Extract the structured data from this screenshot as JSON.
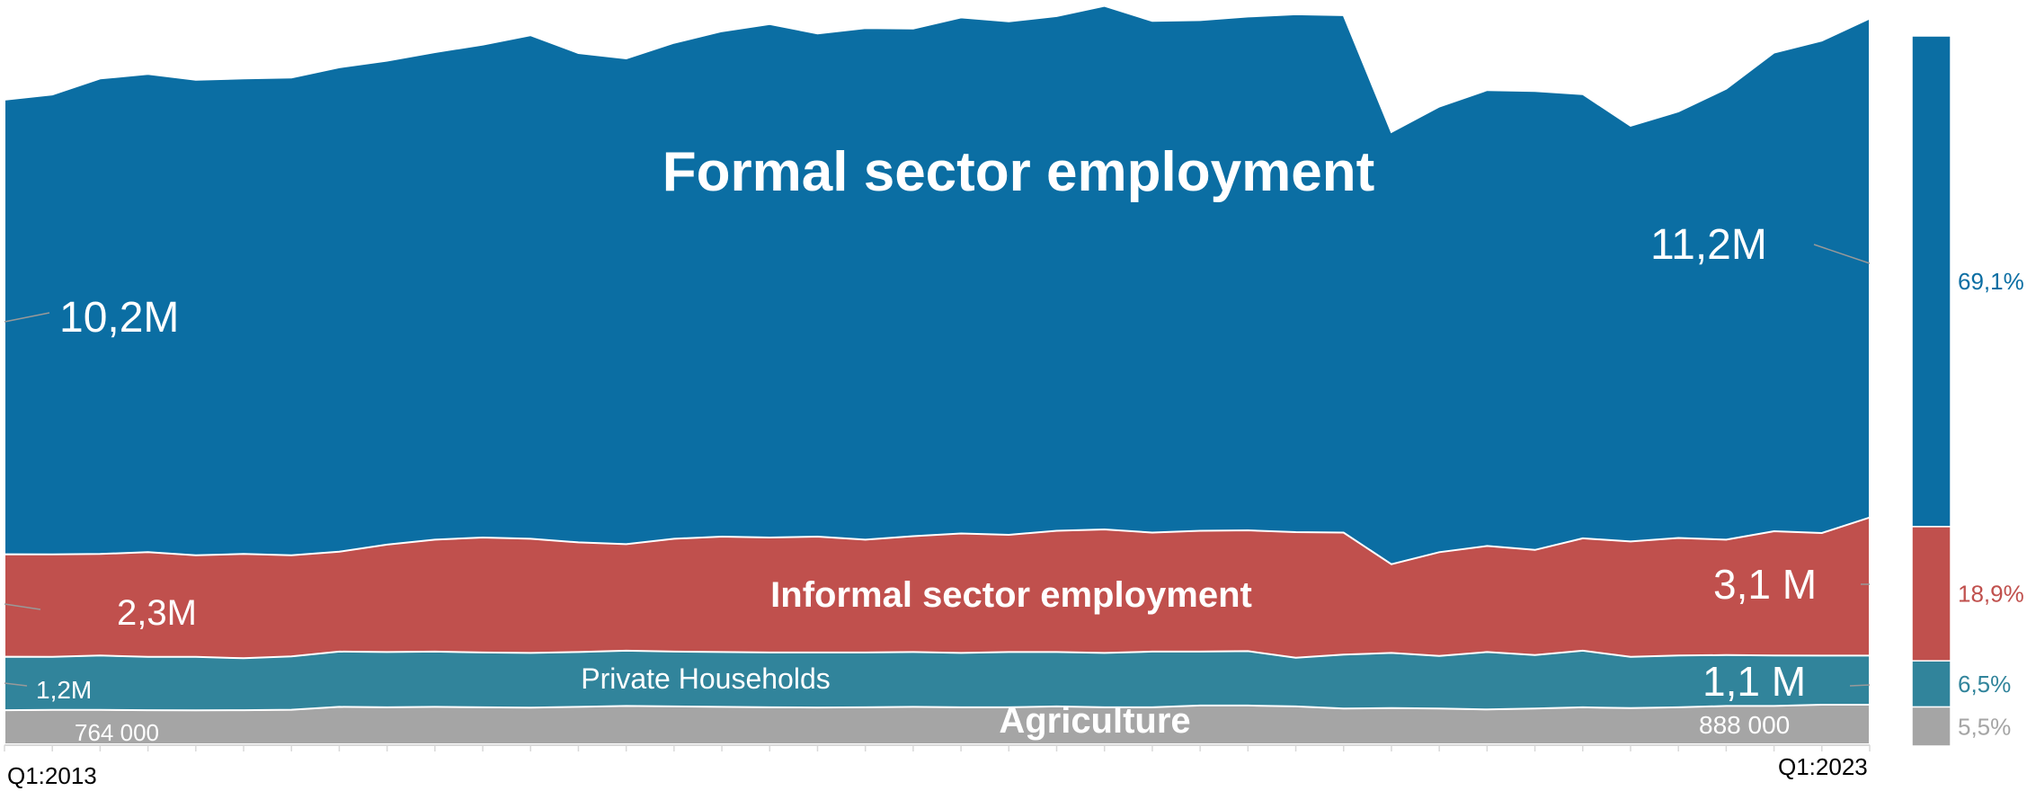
{
  "chart_data": {
    "type": "area",
    "stacked": true,
    "x_ticks": [
      "Q1:2013",
      "Q1:2023"
    ],
    "series": [
      {
        "name": "Agriculture",
        "color": "#a5a5a5"
      },
      {
        "name": "Private Households",
        "color": "#31849b"
      },
      {
        "name": "Informal sector employment",
        "color": "#c0504d"
      },
      {
        "name": "Formal sector employment",
        "color": "#0b6ea3"
      }
    ],
    "stack_totals": [
      [
        0.764,
        0.77,
        0.77,
        0.765,
        0.76,
        0.765,
        0.775,
        0.84,
        0.83,
        0.84,
        0.83,
        0.82,
        0.84,
        0.86,
        0.85,
        0.84,
        0.83,
        0.825,
        0.83,
        0.84,
        0.83,
        0.83,
        0.85,
        0.83,
        0.83,
        0.87,
        0.87,
        0.85,
        0.8,
        0.81,
        0.8,
        0.78,
        0.8,
        0.83,
        0.81,
        0.83,
        0.86,
        0.86,
        0.888,
        0.888
      ],
      [
        1.964,
        1.96,
        1.99,
        1.96,
        1.96,
        1.93,
        1.97,
        2.08,
        2.07,
        2.08,
        2.06,
        2.05,
        2.07,
        2.1,
        2.08,
        2.07,
        2.06,
        2.06,
        2.06,
        2.07,
        2.05,
        2.07,
        2.07,
        2.05,
        2.08,
        2.08,
        2.09,
        1.94,
        2.01,
        2.05,
        1.98,
        2.07,
        2.0,
        2.1,
        1.96,
        1.99,
        2.0,
        1.99,
        1.988,
        1.988
      ],
      [
        4.264,
        4.26,
        4.27,
        4.31,
        4.24,
        4.27,
        4.24,
        4.32,
        4.48,
        4.59,
        4.64,
        4.61,
        4.53,
        4.49,
        4.61,
        4.66,
        4.64,
        4.66,
        4.59,
        4.67,
        4.73,
        4.7,
        4.79,
        4.82,
        4.75,
        4.79,
        4.8,
        4.76,
        4.75,
        4.04,
        4.31,
        4.45,
        4.36,
        4.62,
        4.55,
        4.63,
        4.59,
        4.78,
        4.74,
        5.088
      ],
      [
        14.464,
        14.58,
        14.94,
        15.04,
        14.91,
        14.94,
        14.96,
        15.19,
        15.34,
        15.53,
        15.7,
        15.91,
        15.51,
        15.39,
        15.74,
        16.0,
        16.16,
        15.95,
        16.07,
        16.06,
        16.31,
        16.22,
        16.34,
        16.57,
        16.23,
        16.25,
        16.33,
        16.38,
        16.36,
        13.74,
        14.31,
        14.68,
        14.66,
        14.59,
        13.88,
        14.2,
        14.71,
        15.52,
        15.79,
        16.288
      ]
    ],
    "ylim": [
      0,
      16.6
    ],
    "units": "millions of workers",
    "title": "Formal sector employment",
    "start_labels": {
      "formal": "10,2M",
      "informal": "2,3M",
      "households": "1,2M",
      "agriculture": "764 000"
    },
    "end_labels": {
      "formal": "11,2M",
      "informal": "3,1 M",
      "households": "1,1 M",
      "agriculture": "888 000"
    },
    "band_labels": {
      "formal": "Formal sector employment",
      "informal": "Informal sector employment",
      "households": "Private Households",
      "agriculture": "Agriculture"
    },
    "share_bar": {
      "segments": [
        {
          "series": "Formal sector employment",
          "percent": 69.1,
          "label": "69,1%",
          "color": "#0b6ea3"
        },
        {
          "series": "Informal sector employment",
          "percent": 18.9,
          "label": "18,9%",
          "color": "#c0504d"
        },
        {
          "series": "Private Households",
          "percent": 6.5,
          "label": "6,5%",
          "color": "#31849b"
        },
        {
          "series": "Agriculture",
          "percent": 5.5,
          "label": "5,5%",
          "color": "#a5a5a5"
        }
      ]
    },
    "grid": false,
    "legend": "none"
  }
}
